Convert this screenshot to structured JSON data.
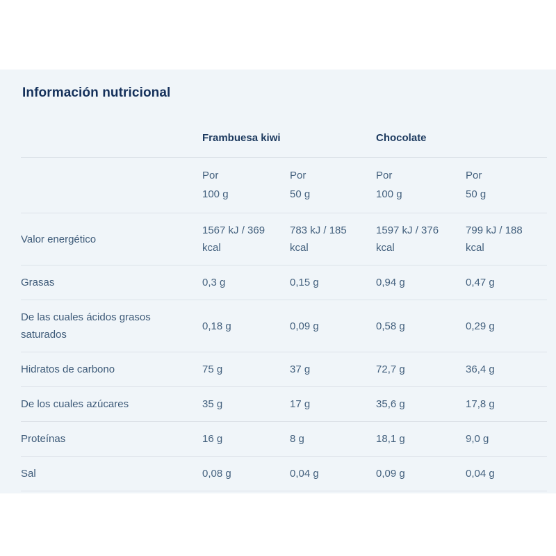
{
  "panel": {
    "title": "Información nutricional"
  },
  "table": {
    "products": [
      {
        "name": "Frambuesa kiwi"
      },
      {
        "name": "Chocolate"
      }
    ],
    "serving_headers": [
      {
        "per": "Por",
        "amount": "100 g"
      },
      {
        "per": "Por",
        "amount": "50 g"
      },
      {
        "per": "Por",
        "amount": "100 g"
      },
      {
        "per": "Por",
        "amount": "50 g"
      }
    ],
    "rows": [
      {
        "label": "Valor energético",
        "values": [
          "1567 kJ / 369 kcal",
          "783 kJ / 185 kcal",
          "1597 kJ / 376 kcal",
          "799 kJ / 188 kcal"
        ]
      },
      {
        "label": "Grasas",
        "values": [
          "0,3 g",
          "0,15 g",
          "0,94 g",
          "0,47 g"
        ]
      },
      {
        "label": "De las cuales ácidos grasos saturados",
        "values": [
          "0,18 g",
          "0,09 g",
          "0,58 g",
          "0,29 g"
        ]
      },
      {
        "label": "Hidratos de carbono",
        "values": [
          "75 g",
          "37 g",
          "72,7 g",
          "36,4 g"
        ]
      },
      {
        "label": "De los cuales azúcares",
        "values": [
          "35 g",
          "17 g",
          "35,6 g",
          "17,8 g"
        ]
      },
      {
        "label": "Proteínas",
        "values": [
          "16 g",
          "8 g",
          "18,1 g",
          "9,0 g"
        ]
      },
      {
        "label": "Sal",
        "values": [
          "0,08 g",
          "0,04 g",
          "0,09 g",
          "0,04 g"
        ]
      }
    ]
  },
  "colors": {
    "panel_background": "#f0f5f9",
    "title_text": "#14305a",
    "product_header_text": "#1d3a5f",
    "body_text": "#44617e",
    "divider": "#dce2e8"
  }
}
